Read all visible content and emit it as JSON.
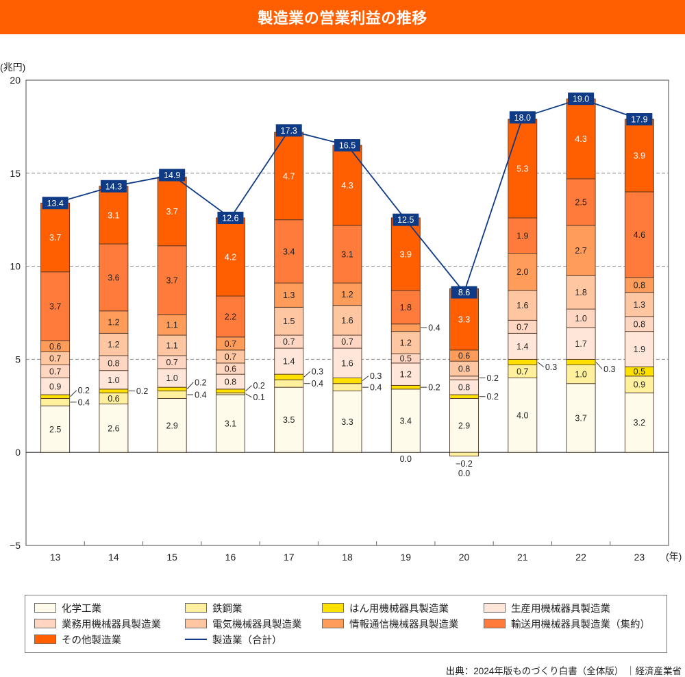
{
  "header": {
    "title": "製造業の営業利益の推移"
  },
  "axes": {
    "y_unit": "(兆円)",
    "x_unit": "(年)"
  },
  "legend": {
    "items": [
      {
        "label": "化学工業",
        "color": "#fffbea"
      },
      {
        "label": "鉄鋼業",
        "color": "#fff09e"
      },
      {
        "label": "はん用機械器具製造業",
        "color": "#ffe100"
      },
      {
        "label": "生産用機械器具製造業",
        "color": "#ffe6d8"
      },
      {
        "label": "業務用機械器具製造業",
        "color": "#ffd6c2"
      },
      {
        "label": "電気機械器具製造業",
        "color": "#ffc6a2"
      },
      {
        "label": "情報通信機械器具製造業",
        "color": "#ff9c5a"
      },
      {
        "label": "輸送用機械器具製造業（集約）",
        "color": "#ff7b3c"
      },
      {
        "label": "その他製造業",
        "color": "#ff5f00"
      },
      {
        "label": "製造業（合計）",
        "color": "#0f3a85"
      }
    ]
  },
  "source": "出典：2024年版ものづくり白書（全体版） ｜経済産業省",
  "chart_data": {
    "type": "bar",
    "stacked": true,
    "title": "製造業の営業利益の推移",
    "xlabel": "(年)",
    "ylabel": "(兆円)",
    "ylim": [
      -5,
      20
    ],
    "yticks": [
      -5,
      0,
      5,
      10,
      15,
      20
    ],
    "grid": "dashed horizontal at 5, 10, 15",
    "legend_position": "bottom",
    "categories": [
      "13",
      "14",
      "15",
      "16",
      "17",
      "18",
      "19",
      "20",
      "21",
      "22",
      "23"
    ],
    "series": [
      {
        "name": "化学工業",
        "color": "#fffbea",
        "values": [
          2.5,
          2.6,
          2.9,
          3.1,
          3.5,
          3.3,
          3.4,
          2.9,
          4.0,
          3.7,
          3.2
        ]
      },
      {
        "name": "鉄鋼業",
        "color": "#fff09e",
        "values": [
          0.4,
          0.6,
          0.4,
          0.1,
          0.4,
          0.4,
          0.0,
          -0.2,
          0.7,
          1.0,
          0.9
        ]
      },
      {
        "name": "はん用機械器具製造業",
        "color": "#ffe100",
        "values": [
          0.2,
          0.2,
          0.2,
          0.2,
          0.3,
          0.3,
          0.2,
          0.2,
          0.3,
          0.3,
          0.5
        ]
      },
      {
        "name": "生産用機械器具製造業",
        "color": "#ffe6d8",
        "values": [
          0.9,
          1.0,
          1.0,
          0.8,
          1.4,
          1.6,
          1.2,
          0.8,
          1.4,
          1.7,
          1.9
        ]
      },
      {
        "name": "業務用機械器具製造業",
        "color": "#ffd6c2",
        "values": [
          0.7,
          0.8,
          0.7,
          0.6,
          0.7,
          0.7,
          0.5,
          0.2,
          0.7,
          1.0,
          0.8
        ]
      },
      {
        "name": "電気機械器具製造業",
        "color": "#ffc6a2",
        "values": [
          0.7,
          1.2,
          1.1,
          0.7,
          1.5,
          1.6,
          1.2,
          0.8,
          1.6,
          1.8,
          1.3
        ]
      },
      {
        "name": "情報通信機械器具製造業",
        "color": "#ff9c5a",
        "values": [
          0.6,
          1.2,
          1.1,
          0.7,
          1.3,
          1.2,
          0.4,
          0.6,
          2.0,
          2.7,
          0.8
        ]
      },
      {
        "name": "輸送用機械器具製造業（集約）",
        "color": "#ff7b3c",
        "values": [
          3.7,
          3.6,
          3.7,
          2.2,
          3.4,
          3.1,
          1.8,
          0.0,
          1.9,
          2.5,
          4.6
        ]
      },
      {
        "name": "その他製造業",
        "color": "#ff5f00",
        "values": [
          3.7,
          3.1,
          3.7,
          4.2,
          4.7,
          4.3,
          3.9,
          3.3,
          5.3,
          4.3,
          3.9
        ]
      }
    ],
    "line_series": {
      "name": "製造業（合計）",
      "type": "line",
      "color": "#0f3a85",
      "values": [
        13.4,
        14.3,
        14.9,
        12.6,
        17.3,
        16.5,
        12.5,
        8.6,
        18.0,
        19.0,
        17.9
      ]
    },
    "callouts": [
      {
        "cat": 0,
        "series": 2,
        "text": "0.2",
        "dy": -9
      },
      {
        "cat": 0,
        "series": 1,
        "text": "0.4",
        "dy": 0
      },
      {
        "cat": 1,
        "series": 2,
        "text": "0.2",
        "dy": 0
      },
      {
        "cat": 2,
        "series": 2,
        "text": "0.2",
        "dy": -10
      },
      {
        "cat": 2,
        "series": 1,
        "text": "0.4",
        "dy": 0
      },
      {
        "cat": 3,
        "series": 2,
        "text": "0.2",
        "dy": -8
      },
      {
        "cat": 3,
        "series": 1,
        "text": "0.1",
        "dy": 5
      },
      {
        "cat": 4,
        "series": 2,
        "text": "0.3",
        "dy": -8
      },
      {
        "cat": 4,
        "series": 1,
        "text": "0.4",
        "dy": 0
      },
      {
        "cat": 5,
        "series": 2,
        "text": "0.3",
        "dy": -7
      },
      {
        "cat": 5,
        "series": 1,
        "text": "0.4",
        "dy": 0
      },
      {
        "cat": 6,
        "series": 2,
        "text": "0.2",
        "dy": 0
      },
      {
        "cat": 6,
        "series": 6,
        "text": "0.4",
        "dy": 0
      },
      {
        "cat": 7,
        "series": 2,
        "text": "0.2",
        "dy": 0
      },
      {
        "cat": 7,
        "series": 4,
        "text": "0.2",
        "dy": 0
      },
      {
        "cat": 8,
        "series": 2,
        "text": "0.3",
        "dy": 7
      },
      {
        "cat": 9,
        "series": 2,
        "text": "0.3",
        "dy": 10
      }
    ],
    "below_labels": [
      {
        "cat": 6,
        "series": 1,
        "text": "0.0",
        "y": 674
      },
      {
        "cat": 7,
        "series": 1,
        "text": "−0.2",
        "y": 681
      },
      {
        "cat": 7,
        "series": 7,
        "text": "0.0",
        "y": 695
      }
    ]
  }
}
